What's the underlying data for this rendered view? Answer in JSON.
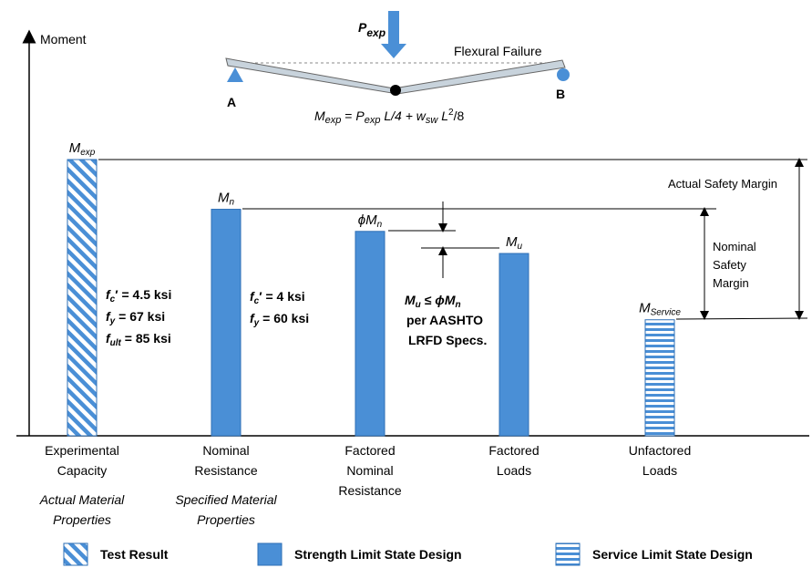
{
  "axis": {
    "y_label": "Moment"
  },
  "beam": {
    "load": {
      "main": "P",
      "sub": "exp"
    },
    "support_a": "A",
    "support_b": "B",
    "failure_label": "Flexural Failure",
    "equation": {
      "lhs_main": "M",
      "lhs_sub": "exp",
      "p_main": "P",
      "p_sub": "exp",
      "p_rest": " L/4  +  w",
      "w_sub": "sw",
      "w_rest": " L",
      "l_sup": "2",
      "tail": "/8",
      "eq": " = "
    }
  },
  "bars": [
    {
      "id": "experimental",
      "label_main": "M",
      "label_sub": "exp",
      "value": 1.0,
      "fill": "hatch-diagonal",
      "category": [
        "Experimental",
        "Capacity"
      ],
      "note": [
        "Actual Material",
        "Properties"
      ]
    },
    {
      "id": "nominal",
      "label_main": "M",
      "label_sub": "n",
      "value": 0.82,
      "fill": "solid",
      "category": [
        "Nominal",
        "Resistance"
      ],
      "note": [
        "Specified Material",
        "Properties"
      ]
    },
    {
      "id": "factored-nominal",
      "label_main": "ϕM",
      "label_sub": "n",
      "value": 0.74,
      "fill": "solid",
      "category": [
        "Factored",
        "Nominal",
        "Resistance"
      ],
      "note": []
    },
    {
      "id": "factored-loads",
      "label_main": "M",
      "label_sub": "u",
      "value": 0.66,
      "fill": "solid",
      "category": [
        "Factored",
        "Loads"
      ],
      "note": []
    },
    {
      "id": "unfactored-loads",
      "label_main": "M",
      "label_sub": "Service",
      "value": 0.42,
      "fill": "hatch-horizontal",
      "category": [
        "Unfactored",
        "Loads"
      ],
      "note": []
    }
  ],
  "materials": {
    "experimental": [
      {
        "main": "f",
        "sub": "c",
        "sup": "′",
        "rest": " = 4.5 ksi"
      },
      {
        "main": "f",
        "sub": "y",
        "sup": "",
        "rest": " = 67 ksi"
      },
      {
        "main": "f",
        "sub": "ult",
        "sup": "",
        "rest": " = 85 ksi"
      }
    ],
    "nominal": [
      {
        "main": "f",
        "sub": "c",
        "sup": "′",
        "rest": " = 4 ksi"
      },
      {
        "main": "f",
        "sub": "y",
        "sup": "",
        "rest": " = 60 ksi"
      }
    ]
  },
  "comparison": {
    "lhs_main": "M",
    "lhs_sub": "u",
    "op": " ≤ ϕM",
    "rhs_sub": "n",
    "lines": [
      "per AASHTO",
      "LRFD Specs."
    ]
  },
  "margins": {
    "actual": "Actual Safety Margin",
    "nominal": [
      "Nominal",
      "Safety",
      "Margin"
    ]
  },
  "legend": [
    {
      "label": "Test Result",
      "fill": "hatch-diagonal"
    },
    {
      "label": "Strength Limit State Design",
      "fill": "solid"
    },
    {
      "label": "Service Limit State Design",
      "fill": "hatch-horizontal"
    }
  ],
  "colors": {
    "bar_fill": "#4a8fd6",
    "bar_stroke": "#2e6fb6",
    "axis": "#000000"
  }
}
